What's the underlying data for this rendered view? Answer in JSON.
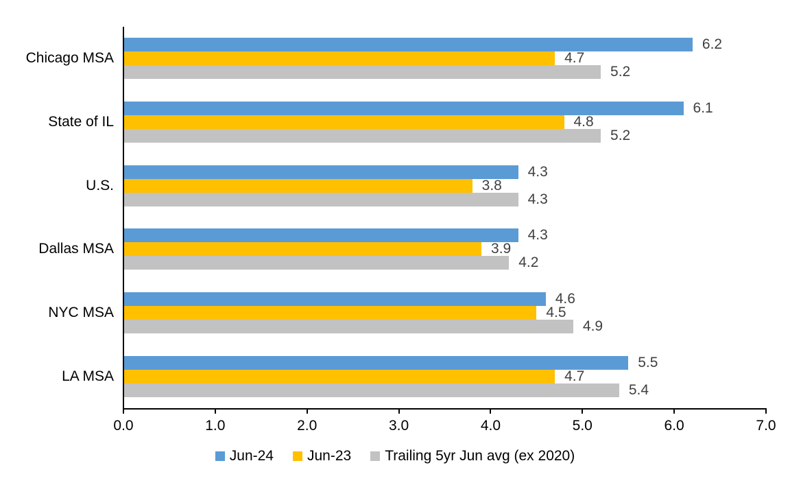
{
  "chart_data": {
    "type": "bar",
    "orientation": "horizontal",
    "categories": [
      "Chicago MSA",
      "State of IL",
      "U.S.",
      "Dallas MSA",
      "NYC MSA",
      "LA MSA"
    ],
    "series": [
      {
        "name": "Jun-24",
        "color": "#5B9BD5",
        "values": [
          6.2,
          6.1,
          4.3,
          4.3,
          4.6,
          5.5
        ]
      },
      {
        "name": "Jun-23",
        "color": "#FFC000",
        "values": [
          4.7,
          4.8,
          3.8,
          3.9,
          4.5,
          4.7
        ]
      },
      {
        "name": "Trailing 5yr Jun avg (ex 2020)",
        "color": "#C2C2C2",
        "values": [
          5.2,
          5.2,
          4.3,
          4.2,
          4.9,
          5.4
        ]
      }
    ],
    "xlim": [
      0,
      7
    ],
    "x_tick_labels": [
      "0.0",
      "1.0",
      "2.0",
      "3.0",
      "4.0",
      "5.0",
      "6.0",
      "7.0"
    ],
    "data_labels_shown": true,
    "data_label_format": "one-decimal",
    "grid": false,
    "legend_position": "bottom",
    "colors": {
      "axis": "#000000",
      "category_text": "#000000",
      "tick_text": "#000000",
      "data_label_text": "#404040",
      "background": "#FFFFFF"
    }
  }
}
